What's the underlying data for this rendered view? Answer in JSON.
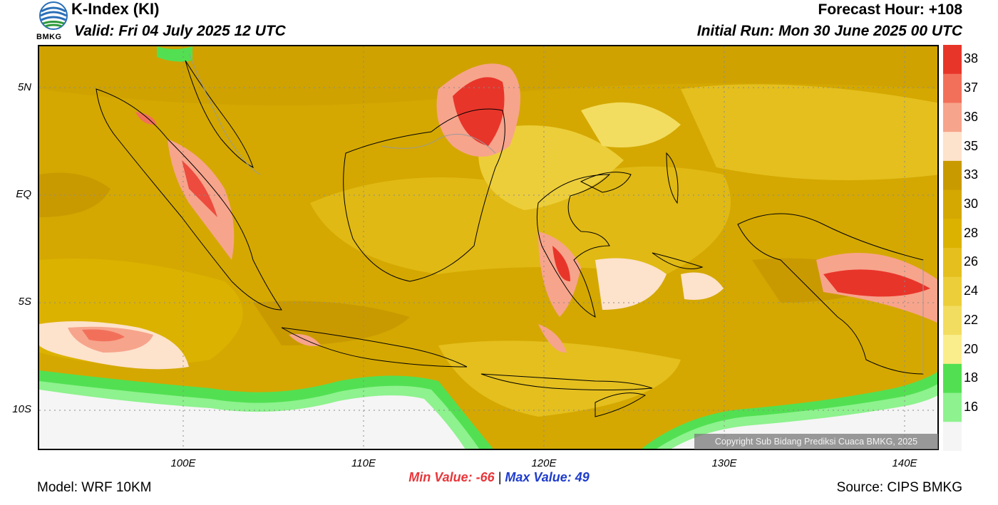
{
  "header": {
    "title": "K-Index (KI)",
    "valid": "Valid: Fri 04 July 2025 12 UTC",
    "forecast_hour": "Forecast Hour: +108",
    "initial_run": "Initial Run: Mon 30 June 2025 00 UTC",
    "logo_text": "BMKG"
  },
  "map": {
    "lat_labels": [
      "5N",
      "EQ",
      "5S",
      "10S"
    ],
    "lon_labels": [
      "100E",
      "110E",
      "120E",
      "130E",
      "140E"
    ],
    "copyright": "Copyright Sub Bidang Prediksi Cuaca BMKG, 2025"
  },
  "colorbar": {
    "labels": [
      "38",
      "37",
      "36",
      "35",
      "33",
      "30",
      "28",
      "26",
      "24",
      "22",
      "20",
      "18",
      "16"
    ],
    "colors": [
      "#e8352a",
      "#f2705a",
      "#f7a48c",
      "#fde2cc",
      "#c99a00",
      "#d4a800",
      "#dcb200",
      "#e4bf1e",
      "#ecce3a",
      "#f3dd60",
      "#faed8c",
      "#52e052",
      "#8ef28e",
      "#f5f5f5"
    ]
  },
  "stats": {
    "min_label": "Min Value: -66",
    "separator": "|",
    "max_label": "Max Value:  49"
  },
  "footer": {
    "model": "Model: WRF 10KM",
    "source": "Source: CIPS BMKG"
  }
}
